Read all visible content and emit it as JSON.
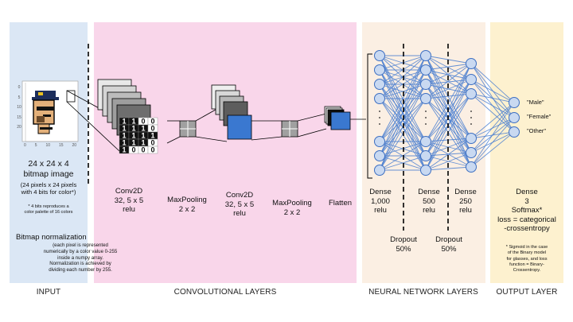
{
  "colors": {
    "input_panel": "#dbe7f5",
    "conv_panel": "#f9d6ea",
    "nn_panel": "#fbefe3",
    "output_panel": "#fdf1cf",
    "node_fill": "#c9d9f1",
    "node_stroke": "#3d6fc2",
    "edge": "#4a7fd1",
    "feature_blue": "#3a78d0"
  },
  "section_labels": {
    "input": "INPUT",
    "conv": "CONVOLUTIONAL LAYERS",
    "nn": "NEURAL NETWORK LAYERS",
    "output": "OUTPUT LAYER"
  },
  "input": {
    "title_line1": "24 x 24 x 4",
    "title_line2": "bitmap image",
    "detail_line1": "(24 pixels x 24 pixels",
    "detail_line2": "with 4 bits for color*)",
    "note_line1": "* 4 bits reproduces a",
    "note_line2": "color palette of 16 colors",
    "norm_title": "Bitmap normalization",
    "norm_line1": "(each pixel is represented",
    "norm_line2": "numerically by a color value 0-255",
    "norm_line3": "inside a numpy array.",
    "norm_line4": "Normalization is achieved by",
    "norm_line5": "dividing each number by 255.",
    "axis_y_ticks": [
      "0",
      "5",
      "10",
      "15",
      "20"
    ],
    "axis_x_ticks": [
      "0",
      "5",
      "10",
      "15",
      "20"
    ]
  },
  "binary_matrix": [
    [
      "1",
      "1",
      "0",
      "0"
    ],
    [
      "1",
      "1",
      "1",
      "0"
    ],
    [
      "1",
      "1",
      "1",
      "1"
    ],
    [
      "1",
      "1",
      "1",
      "0"
    ],
    [
      "1",
      "0",
      "0",
      "0"
    ]
  ],
  "conv_layers": {
    "conv1": {
      "line1": "Conv2D",
      "line2": "32, 5 x 5",
      "line3": "relu"
    },
    "pool1": {
      "line1": "MaxPooling",
      "line2": "2 x 2"
    },
    "conv2": {
      "line1": "Conv2D",
      "line2": "32, 5 x 5",
      "line3": "relu"
    },
    "pool2": {
      "line1": "MaxPooling",
      "line2": "2 x 2"
    },
    "flatten": {
      "line1": "Flatten"
    }
  },
  "nn_layers": {
    "dense1": {
      "line1": "Dense",
      "line2": "1,000",
      "line3": "relu"
    },
    "dense2": {
      "line1": "Dense",
      "line2": "500",
      "line3": "relu"
    },
    "dense3": {
      "line1": "Dense",
      "line2": "250",
      "line3": "relu"
    },
    "dropout1": {
      "line1": "Dropout",
      "line2": "50%"
    },
    "dropout2": {
      "line1": "Dropout",
      "line2": "50%"
    }
  },
  "output": {
    "classes": [
      "\"Male\"",
      "\"Female\"",
      "\"Other\""
    ],
    "line1": "Dense",
    "line2": "3",
    "line3": "Softmax*",
    "line4": "loss = categorical",
    "line5": "-crossentropy",
    "note_line1": "* Sigmoid in the case",
    "note_line2": "of the Binary model",
    "note_line3": "for glasses, and loss",
    "note_line4": "function = Binary-",
    "note_line5": "Crossentropy."
  }
}
